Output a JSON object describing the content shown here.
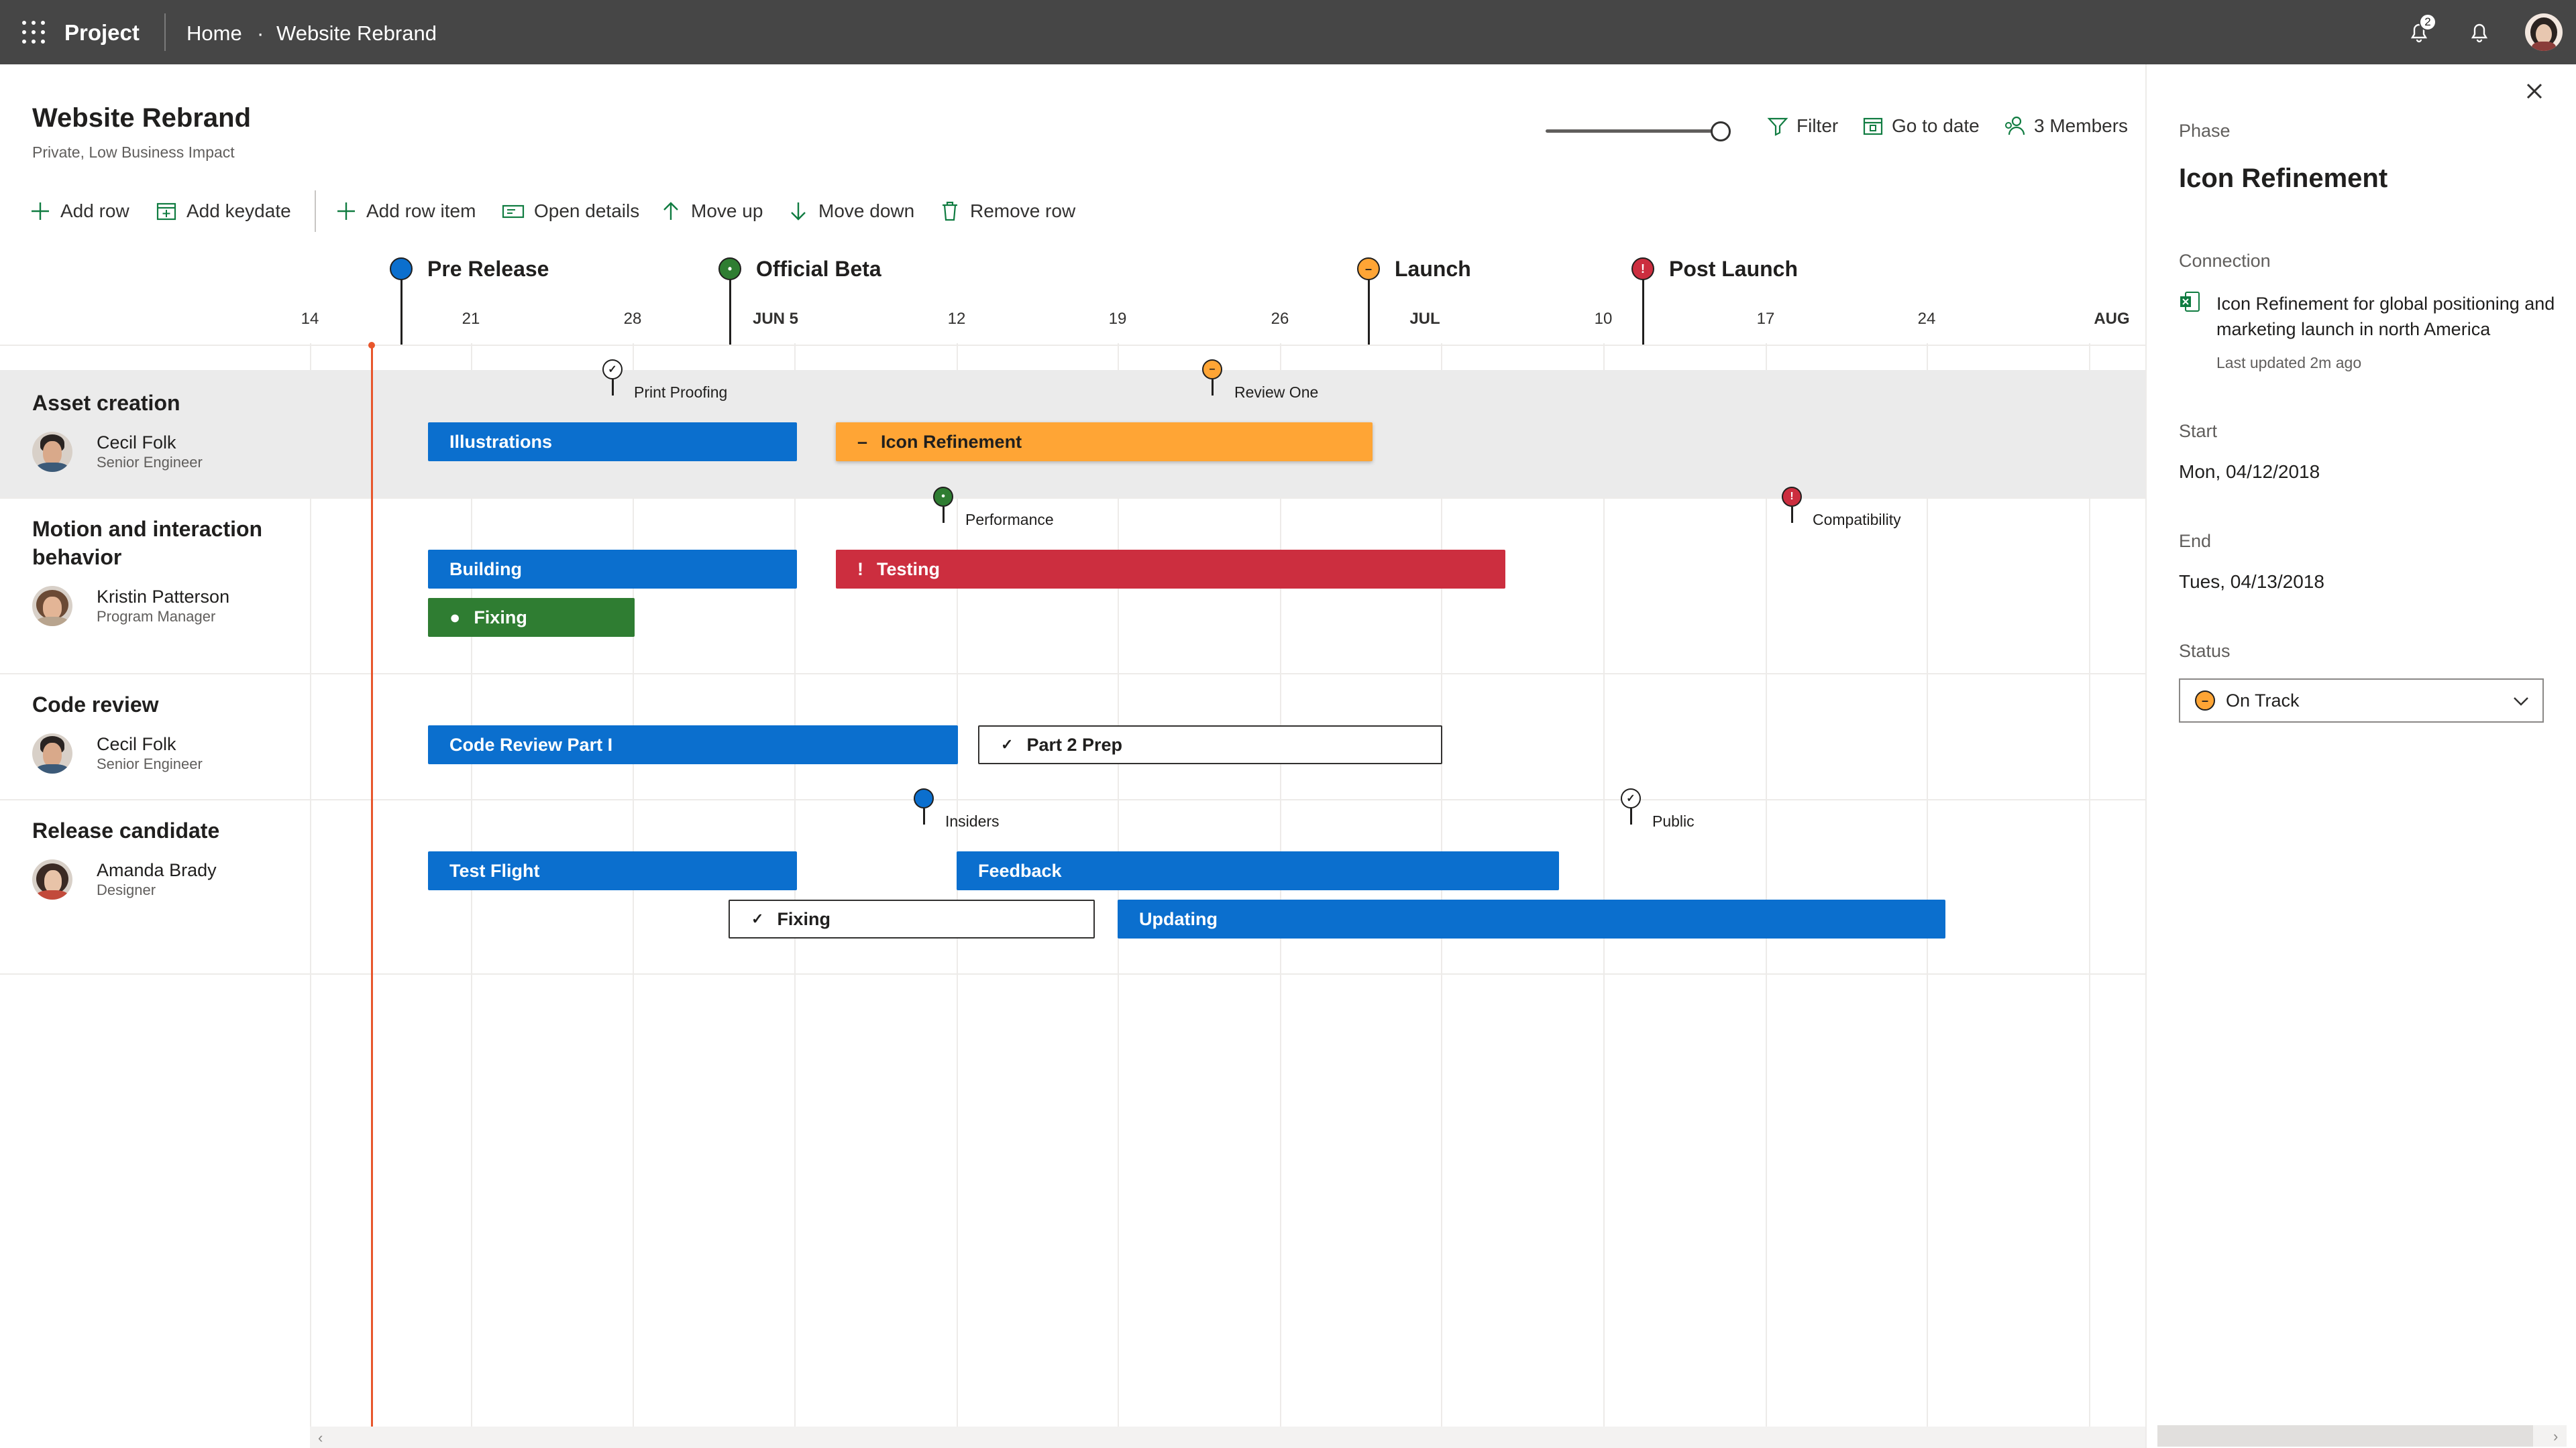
{
  "app": {
    "name": "Project",
    "breadcrumb_home": "Home",
    "breadcrumb_sep": "·",
    "breadcrumb_current": "Website Rebrand",
    "notification_count": "2"
  },
  "header": {
    "title": "Website Rebrand",
    "subtitle": "Private, Low Business Impact",
    "filter_label": "Filter",
    "go_to_date_label": "Go to date",
    "members_label": "3 Members",
    "zoom_level": 1.0
  },
  "toolbar": {
    "add_row": "Add row",
    "add_keydate": "Add keydate",
    "add_row_item": "Add row item",
    "open_details": "Open details",
    "move_up": "Move up",
    "move_down": "Move down",
    "remove_row": "Remove row"
  },
  "milestones": [
    {
      "label": "Pre Release",
      "status": "blue"
    },
    {
      "label": "Official Beta",
      "status": "green"
    },
    {
      "label": "Launch",
      "status": "orange"
    },
    {
      "label": "Post Launch",
      "status": "red"
    }
  ],
  "dates": [
    "14",
    "21",
    "28",
    "JUN 5",
    "12",
    "19",
    "26",
    "JUL",
    "10",
    "17",
    "24",
    "AUG"
  ],
  "rows": [
    {
      "title": "Asset creation",
      "person": "Cecil Folk",
      "role": "Senior Engineer",
      "keydates": [
        "Print Proofing",
        "Review One"
      ],
      "bars": [
        "Illustrations",
        "Icon Refinement"
      ]
    },
    {
      "title": "Motion and interaction behavior",
      "person": "Kristin Patterson",
      "role": "Program Manager",
      "keydates": [
        "Performance",
        "Compatibility"
      ],
      "bars": [
        "Building",
        "Testing",
        "Fixing"
      ]
    },
    {
      "title": "Code review",
      "person": "Cecil Folk",
      "role": "Senior Engineer",
      "keydates": [],
      "bars": [
        "Code Review Part I",
        "Part 2 Prep"
      ]
    },
    {
      "title": "Release candidate",
      "person": "Amanda Brady",
      "role": "Designer",
      "keydates": [
        "Insiders",
        "Public"
      ],
      "bars": [
        "Test Flight",
        "Feedback",
        "Fixing",
        "Updating"
      ]
    }
  ],
  "panel": {
    "section": "Phase",
    "title": "Icon Refinement",
    "connection_label": "Connection",
    "connection_text": "Icon Refinement for global positioning and marketing launch in north America",
    "connection_updated": "Last updated 2m ago",
    "start_label": "Start",
    "start_value": "Mon, 04/12/2018",
    "end_label": "End",
    "end_value": "Tues, 04/13/2018",
    "status_label": "Status",
    "status_value": "On Track"
  },
  "colors": {
    "blue": "#0b6fce",
    "orange": "#ffa535",
    "red": "#cc2e3f",
    "green": "#2f7d32",
    "today_line": "#e8562c",
    "topbar": "#464646"
  },
  "icons": [
    "waffle-icon",
    "notification-icon",
    "bell-icon",
    "filter-icon",
    "calendar-icon",
    "people-icon",
    "plus-icon",
    "open-details-icon",
    "arrow-up-icon",
    "arrow-down-icon",
    "trash-icon",
    "close-icon",
    "excel-icon",
    "chevron-down-icon",
    "check-icon"
  ]
}
